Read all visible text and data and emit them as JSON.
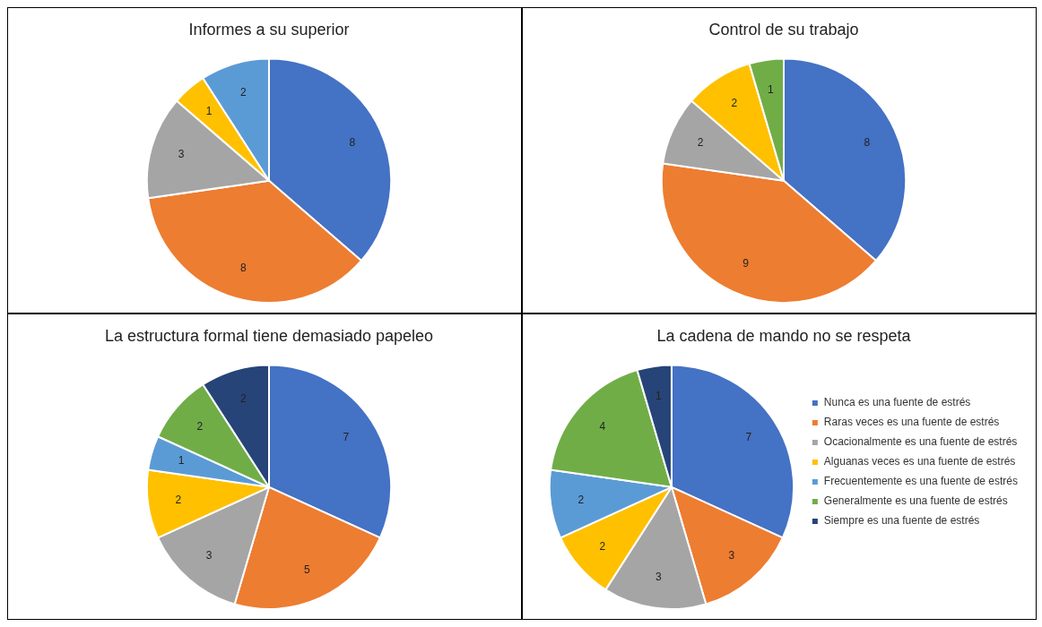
{
  "chart_data": [
    {
      "type": "pie",
      "title": "Informes a su superior",
      "categories": [
        null,
        null,
        null,
        null,
        null
      ],
      "values": [
        8,
        8,
        3,
        1,
        2
      ],
      "colors": [
        "#4472c4",
        "#ed7d31",
        "#a5a5a5",
        "#ffc000",
        "#5b9bd5"
      ],
      "data_labels": true,
      "legend": false
    },
    {
      "type": "pie",
      "title": "Control de su trabajo",
      "categories": [
        null,
        null,
        null,
        null,
        null
      ],
      "values": [
        8,
        9,
        2,
        2,
        1
      ],
      "colors": [
        "#4472c4",
        "#ed7d31",
        "#a5a5a5",
        "#ffc000",
        "#70ad47"
      ],
      "data_labels": true,
      "legend": false
    },
    {
      "type": "pie",
      "title": "La estructura formal tiene demasiado papeleo",
      "categories": [
        null,
        null,
        null,
        null,
        null,
        null,
        null
      ],
      "values": [
        7,
        5,
        3,
        2,
        1,
        2,
        2
      ],
      "colors": [
        "#4472c4",
        "#ed7d31",
        "#a5a5a5",
        "#ffc000",
        "#5b9bd5",
        "#70ad47",
        "#264478"
      ],
      "data_labels": true,
      "legend": false
    },
    {
      "type": "pie",
      "title": "La cadena de mando no se respeta",
      "categories": [
        "Nunca es una fuente de estrés",
        "Raras veces es una fuente de estrés",
        "Ocacionalmente es una fuente de estrés",
        "Alguanas veces es una fuente de estrés",
        "Frecuentemente es una fuente de estrés",
        "Generalmente es una fuente de estrés",
        "Siempre es una fuente de estrés"
      ],
      "values": [
        7,
        3,
        3,
        2,
        2,
        4,
        1
      ],
      "colors": [
        "#4472c4",
        "#ed7d31",
        "#a5a5a5",
        "#ffc000",
        "#5b9bd5",
        "#70ad47",
        "#264478"
      ],
      "data_labels": true,
      "legend": "right"
    }
  ]
}
